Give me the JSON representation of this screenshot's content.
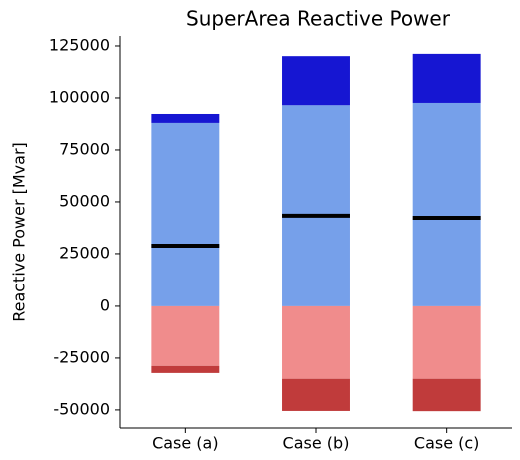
{
  "chart_data": {
    "type": "stacked_bar",
    "title": "SuperArea Reactive Power",
    "ylabel": "Reactive Power [Mvar]",
    "categories": [
      "Case (a)",
      "Case (b)",
      "Case (c)"
    ],
    "series": [
      {
        "color": "#76a0ea",
        "values": [
          88000,
          96500,
          97600
        ]
      },
      {
        "color": "#1616d2",
        "values": [
          4300,
          23600,
          23600
        ]
      },
      {
        "color": "#f08c8c",
        "values": [
          -28800,
          -35000,
          -35000
        ]
      },
      {
        "color": "#c03b3b",
        "values": [
          -3400,
          -15500,
          -15600
        ]
      }
    ],
    "markers": {
      "color": "#000000",
      "values": [
        28800,
        43300,
        42300
      ]
    },
    "ylim": [
      -58700,
      129800
    ],
    "yticks": [
      -50000,
      -25000,
      0,
      25000,
      50000,
      75000,
      100000,
      125000
    ],
    "grid": false
  }
}
